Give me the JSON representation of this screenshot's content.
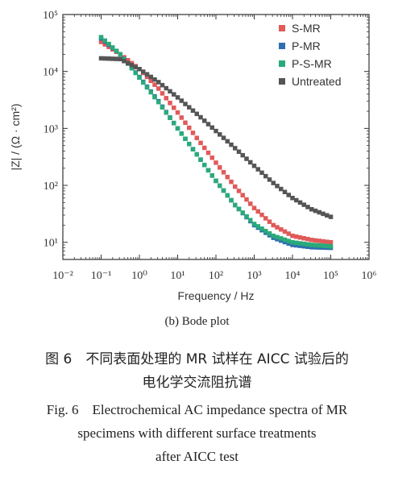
{
  "chart_data": {
    "type": "scatter",
    "subtitle": "(b) Bode plot",
    "xlabel": "Frequency / Hz",
    "ylabel": "|Z| / (Ω · cm²)",
    "xscale": "log",
    "yscale": "log",
    "xlim": [
      0.01,
      1000000
    ],
    "ylim": [
      5,
      100000
    ],
    "x_ticks": [
      "10⁻²",
      "10⁻¹",
      "10⁰",
      "10¹",
      "10²",
      "10³",
      "10⁴",
      "10⁵",
      "10⁶"
    ],
    "y_ticks": [
      "10¹",
      "10²",
      "10³",
      "10⁴",
      "10⁵"
    ],
    "legend_position": "top-right",
    "grid": false,
    "x": [
      0.1,
      0.3162,
      1,
      3.162,
      10,
      31.62,
      100,
      316.2,
      1000,
      3162,
      10000,
      31620,
      100000
    ],
    "series": [
      {
        "name": "S-MR",
        "color": "#e05a5a",
        "values": [
          33000,
          20000,
          11000,
          5000,
          1900,
          680,
          250,
          95,
          40,
          20,
          13,
          11,
          10
        ]
      },
      {
        "name": "P-MR",
        "color": "#2e6fb0",
        "values": [
          38000,
          20000,
          8000,
          3000,
          1000,
          350,
          120,
          45,
          20,
          12,
          9,
          8.2,
          8
        ]
      },
      {
        "name": "P-S-MR",
        "color": "#2aaa7a",
        "values": [
          40000,
          20000,
          7800,
          2900,
          1000,
          350,
          120,
          45,
          21,
          13,
          10,
          9,
          8.5
        ]
      },
      {
        "name": "Untreated",
        "color": "#555555",
        "values": [
          17000,
          16500,
          11000,
          6500,
          3500,
          1800,
          900,
          450,
          220,
          110,
          60,
          38,
          28
        ]
      }
    ]
  },
  "captions": {
    "figure_cn_line1": "图 6　不同表面处理的 MR 试样在 AICC 试验后的",
    "figure_cn_line2": "电化学交流阻抗谱",
    "figure_en_line1": "Fig. 6　Electrochemical AC impedance spectra of MR",
    "figure_en_line2": "specimens with different surface treatments",
    "figure_en_line3": "after AICC test"
  }
}
